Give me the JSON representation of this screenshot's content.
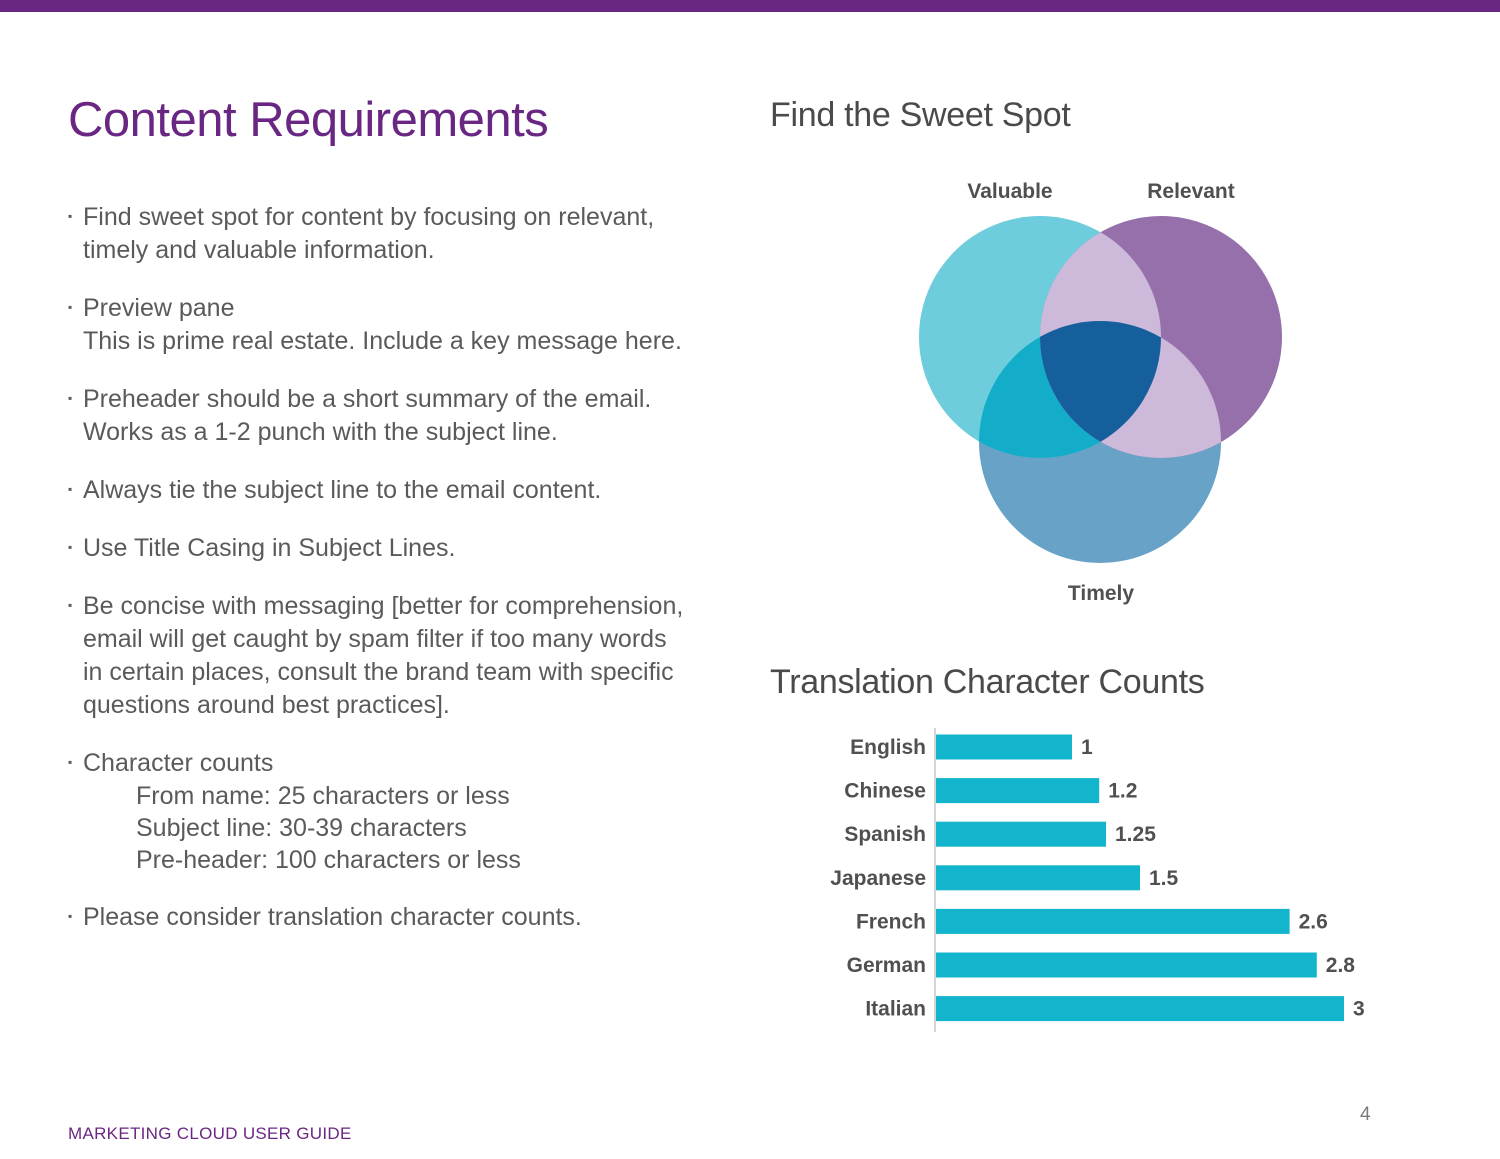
{
  "page": {
    "title": "Content Requirements",
    "footer": "MARKETING CLOUD USER GUIDE",
    "page_number": "4",
    "accent_color": "#6a2683"
  },
  "bullets": [
    {
      "lines": [
        "Find sweet spot for content by focusing on relevant,",
        "timely and valuable information."
      ]
    },
    {
      "lines": [
        "Preview pane",
        "This is prime real estate. Include a key message here."
      ]
    },
    {
      "lines": [
        "Preheader should be a short summary of the email.",
        "Works as a 1-2 punch with the subject line."
      ]
    },
    {
      "lines": [
        "Always tie the subject line to the email content."
      ]
    },
    {
      "lines": [
        "Use Title Casing in Subject Lines."
      ]
    },
    {
      "lines": [
        "Be concise with messaging [better for comprehension,",
        "email will get caught by spam filter if too many words",
        "in certain places, consult the brand team with specific",
        "questions around best practices]."
      ]
    },
    {
      "lines": [
        "Character counts"
      ],
      "sub": [
        "From name: 25 characters or less",
        "Subject line: 30-39 characters",
        "Pre-header: 100 characters or less"
      ]
    },
    {
      "lines": [
        "Please consider translation character counts."
      ]
    }
  ],
  "venn": {
    "heading": "Find the Sweet Spot",
    "labels": {
      "valuable": "Valuable",
      "relevant": "Relevant",
      "timely": "Timely"
    },
    "colors": {
      "valuable": "#6ecddc",
      "relevant": "#9670aa",
      "timely": "#68a2c6",
      "center": "#155f9c"
    }
  },
  "chart_data": {
    "type": "bar",
    "orientation": "horizontal",
    "title": "Translation Character Counts",
    "categories": [
      "English",
      "Chinese",
      "Spanish",
      "Japanese",
      "French",
      "German",
      "Italian"
    ],
    "values": [
      1,
      1.2,
      1.25,
      1.5,
      2.6,
      2.8,
      3
    ],
    "value_labels": [
      "1",
      "1.2",
      "1.25",
      "1.5",
      "2.6",
      "2.8",
      "3"
    ],
    "xlim": [
      0,
      3
    ],
    "bar_color": "#12b5cb",
    "grid": false,
    "legend": "none"
  }
}
